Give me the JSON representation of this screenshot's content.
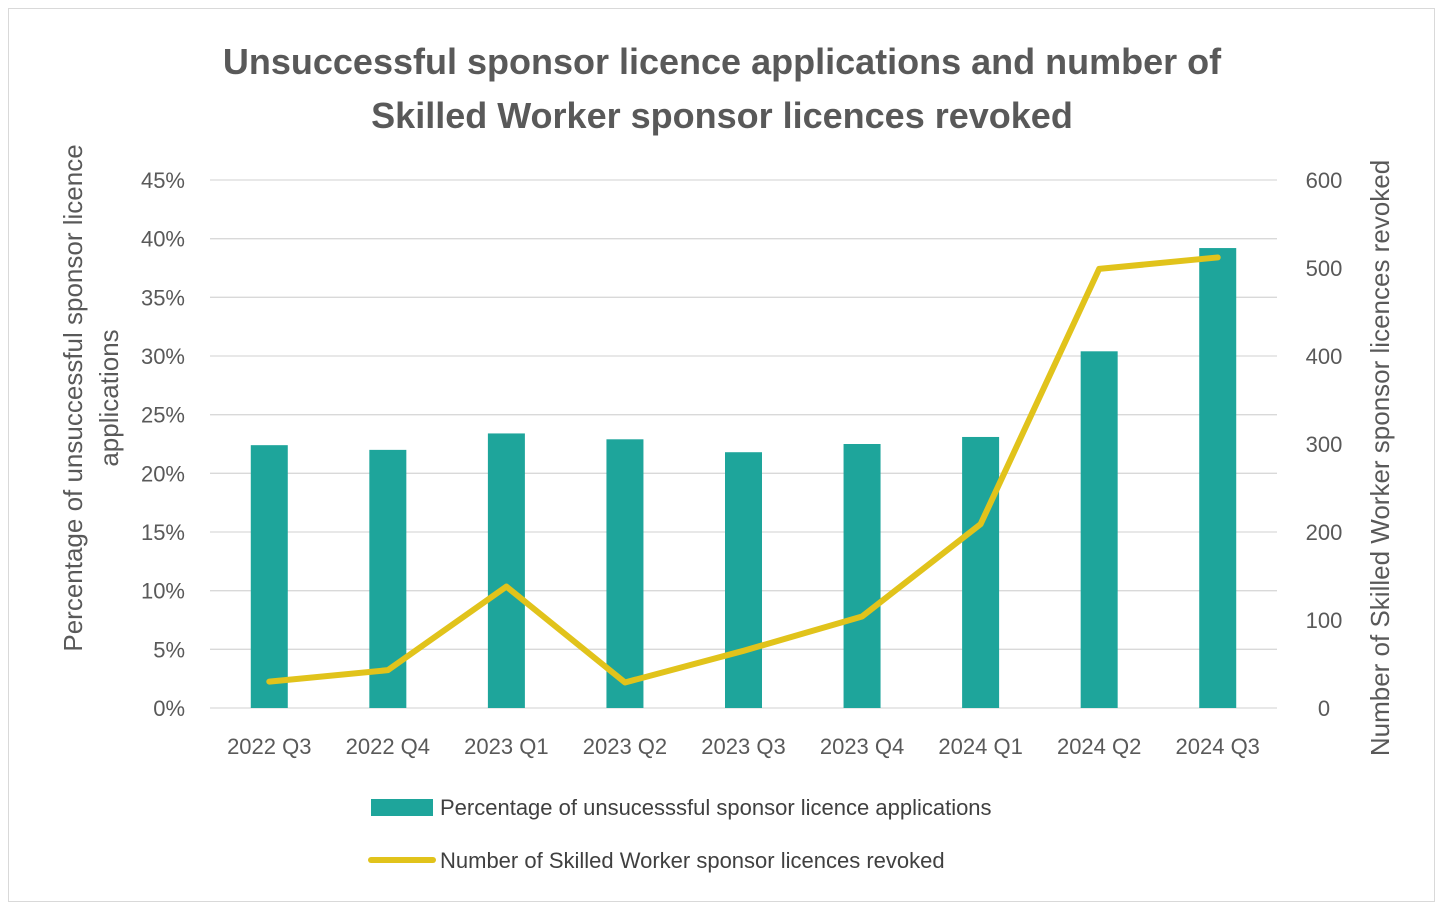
{
  "chart_data": {
    "type": "bar",
    "title": [
      "Unsuccessful sponsor licence applications and number of",
      "Skilled Worker sponsor licences revoked"
    ],
    "categories": [
      "2022 Q3",
      "2022 Q4",
      "2023 Q1",
      "2023 Q2",
      "2023 Q3",
      "2023 Q4",
      "2024 Q1",
      "2024 Q2",
      "2024 Q3"
    ],
    "series": [
      {
        "name": "Percentage of unsucesssful sponsor licence applications",
        "type": "bar",
        "axis": "left",
        "color": "#1ea59b",
        "values": [
          0.224,
          0.22,
          0.234,
          0.229,
          0.218,
          0.225,
          0.231,
          0.304,
          0.392
        ]
      },
      {
        "name": "Number of Skilled Worker sponsor licences revoked",
        "type": "line",
        "axis": "right",
        "color": "#e1c31b",
        "values": [
          30,
          43,
          138,
          29,
          65,
          104,
          209,
          499,
          512
        ]
      }
    ],
    "ylabel_left": [
      "Percentage of unsuccessful sponsor licence",
      "applications"
    ],
    "ylabel_right": "Number of Skilled Worker sponsor licences revoked",
    "ylim_left": [
      0,
      0.45
    ],
    "yticks_left": [
      "0%",
      "5%",
      "10%",
      "15%",
      "20%",
      "25%",
      "30%",
      "35%",
      "40%",
      "45%"
    ],
    "ylim_right": [
      0,
      600
    ],
    "yticks_right": [
      "0",
      "100",
      "200",
      "300",
      "400",
      "500",
      "600"
    ],
    "grid": true,
    "legend_position": "bottom"
  }
}
